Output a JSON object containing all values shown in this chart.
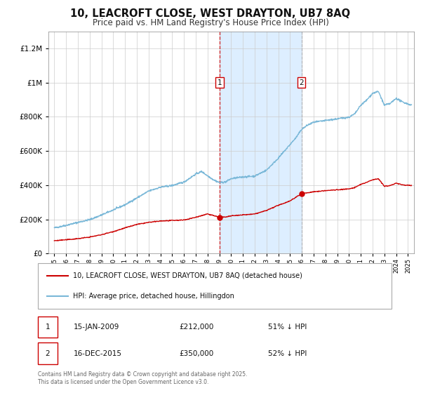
{
  "title": "10, LEACROFT CLOSE, WEST DRAYTON, UB7 8AQ",
  "subtitle": "Price paid vs. HM Land Registry's House Price Index (HPI)",
  "legend_line1": "10, LEACROFT CLOSE, WEST DRAYTON, UB7 8AQ (detached house)",
  "legend_line2": "HPI: Average price, detached house, Hillingdon",
  "annotation1_date": "15-JAN-2009",
  "annotation1_price": "£212,000",
  "annotation1_hpi": "51% ↓ HPI",
  "annotation2_date": "16-DEC-2015",
  "annotation2_price": "£350,000",
  "annotation2_hpi": "52% ↓ HPI",
  "footer": "Contains HM Land Registry data © Crown copyright and database right 2025.\nThis data is licensed under the Open Government Licence v3.0.",
  "sale1_year": 2009.04,
  "sale1_price": 212000,
  "sale2_year": 2015.96,
  "sale2_price": 350000,
  "hpi_color": "#7ab8d8",
  "property_color": "#cc0000",
  "shaded_color": "#ddeeff",
  "annotation_box_color": "#cc0000",
  "background_color": "#ffffff",
  "plot_bg_color": "#ffffff",
  "grid_color": "#cccccc",
  "ylim_max": 1300000,
  "xlim_min": 1994.5,
  "xlim_max": 2025.5,
  "hpi_anchors_x": [
    1995,
    1996,
    1997,
    1998,
    1999,
    2000,
    2001,
    2002,
    2003,
    2004,
    2005,
    2006,
    2007,
    2007.5,
    2008.0,
    2008.5,
    2009.0,
    2009.5,
    2010,
    2011,
    2012,
    2013,
    2014,
    2015,
    2015.5,
    2016,
    2016.5,
    2017,
    2018,
    2019,
    2020,
    2020.5,
    2021,
    2021.5,
    2022,
    2022.5,
    2023,
    2023.5,
    2024,
    2024.5,
    2025.3
  ],
  "hpi_anchors_y": [
    150000,
    165000,
    182000,
    198000,
    225000,
    255000,
    285000,
    325000,
    365000,
    388000,
    398000,
    418000,
    465000,
    480000,
    455000,
    432000,
    415000,
    418000,
    438000,
    448000,
    453000,
    488000,
    558000,
    638000,
    678000,
    728000,
    752000,
    768000,
    778000,
    788000,
    798000,
    818000,
    868000,
    898000,
    938000,
    948000,
    868000,
    878000,
    908000,
    888000,
    868000
  ],
  "prop_anchors_x": [
    1995,
    1996,
    1997,
    1998,
    1999,
    2000,
    2001,
    2002,
    2003,
    2004,
    2005,
    2006,
    2007,
    2008,
    2009.04,
    2009.5,
    2010,
    2011,
    2012,
    2013,
    2014,
    2015,
    2015.96,
    2016.5,
    2017,
    2018,
    2019,
    2020,
    2020.5,
    2021,
    2021.5,
    2022,
    2022.5,
    2023,
    2023.5,
    2024,
    2024.5,
    2025.3
  ],
  "prop_anchors_y": [
    75000,
    80000,
    87000,
    96000,
    110000,
    128000,
    150000,
    170000,
    182000,
    190000,
    193000,
    196000,
    212000,
    232000,
    212000,
    213000,
    220000,
    226000,
    231000,
    252000,
    282000,
    308000,
    350000,
    356000,
    361000,
    368000,
    373000,
    378000,
    386000,
    405000,
    416000,
    432000,
    438000,
    393000,
    398000,
    412000,
    402000,
    398000
  ]
}
